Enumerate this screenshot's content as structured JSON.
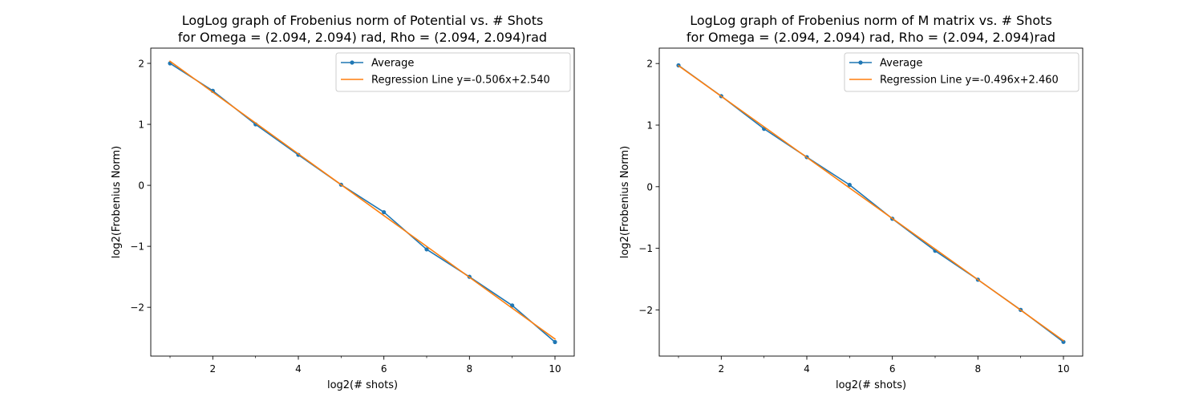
{
  "chart_data": [
    {
      "type": "line",
      "title": "LogLog graph of Frobenius norm of Potential vs. # Shots\nfor Omega = (2.094, 2.094) rad, Rho = (2.094, 2.094)rad",
      "xlabel": "log2(# shots)",
      "ylabel": "log2(Frobenius Norm)",
      "xlim": [
        0.55,
        10.45
      ],
      "ylim": [
        -2.8,
        2.25
      ],
      "xticks": [
        2,
        4,
        6,
        8,
        10
      ],
      "xminor_ticks": [
        1,
        3,
        5,
        7,
        9
      ],
      "yticks": [
        -2,
        -1,
        0,
        1,
        2
      ],
      "grid": false,
      "legend_position": "upper right",
      "series": [
        {
          "name": "Average",
          "color": "#1f77b4",
          "marker": "dot",
          "x": [
            1,
            2,
            3,
            4,
            5,
            6,
            7,
            8,
            9,
            10
          ],
          "y": [
            2.0,
            1.55,
            1.0,
            0.5,
            0.01,
            -0.44,
            -1.05,
            -1.5,
            -1.97,
            -2.57
          ]
        },
        {
          "name": "Regression Line y=-0.506x+2.540",
          "color": "#ff7f0e",
          "marker": "none",
          "x": [
            1,
            2,
            3,
            4,
            5,
            6,
            7,
            8,
            9,
            10
          ],
          "y": [
            2.034,
            1.528,
            1.022,
            0.516,
            0.01,
            -0.496,
            -1.002,
            -1.508,
            -2.014,
            -2.52
          ]
        }
      ]
    },
    {
      "type": "line",
      "title": "LogLog graph of Frobenius norm of M matrix vs. # Shots\nfor Omega = (2.094, 2.094) rad, Rho = (2.094, 2.094)rad",
      "xlabel": "log2(# shots)",
      "ylabel": "log2(Frobenius Norm)",
      "xlim": [
        0.55,
        10.45
      ],
      "ylim": [
        -2.75,
        2.25
      ],
      "xticks": [
        2,
        4,
        6,
        8,
        10
      ],
      "xminor_ticks": [
        1,
        3,
        5,
        7,
        9
      ],
      "yticks": [
        -2,
        -1,
        0,
        1,
        2
      ],
      "grid": false,
      "legend_position": "upper right",
      "series": [
        {
          "name": "Average",
          "color": "#1f77b4",
          "marker": "dot",
          "x": [
            1,
            2,
            3,
            4,
            5,
            6,
            7,
            8,
            9,
            10
          ],
          "y": [
            1.97,
            1.47,
            0.94,
            0.48,
            0.03,
            -0.52,
            -1.04,
            -1.51,
            -2.0,
            -2.52
          ]
        },
        {
          "name": "Regression Line y=-0.496x+2.460",
          "color": "#ff7f0e",
          "marker": "none",
          "x": [
            1,
            2,
            3,
            4,
            5,
            6,
            7,
            8,
            9,
            10
          ],
          "y": [
            1.964,
            1.468,
            0.972,
            0.476,
            -0.02,
            -0.516,
            -1.012,
            -1.508,
            -2.004,
            -2.5
          ]
        }
      ]
    }
  ]
}
